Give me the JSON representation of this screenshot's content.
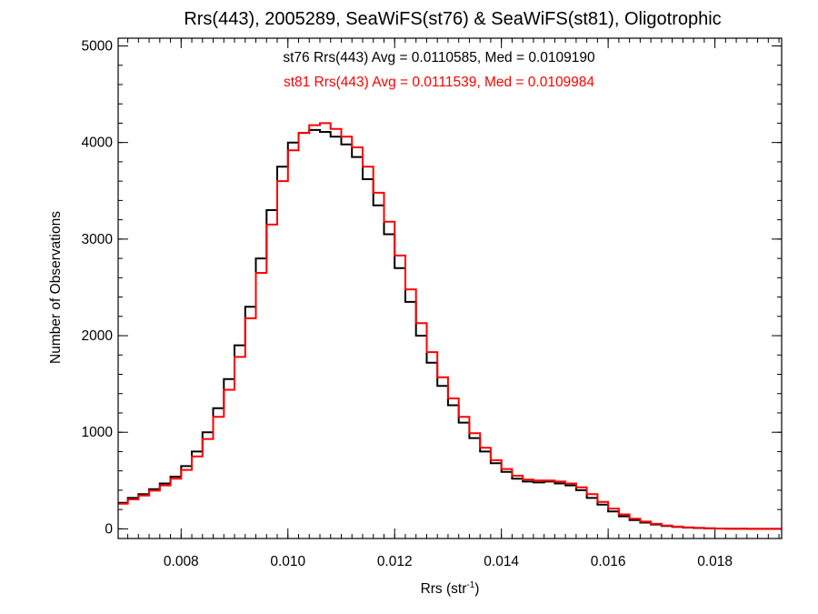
{
  "chart_data": {
    "type": "line",
    "title": "Rrs(443), 2005289, SeaWiFS(st76) & SeaWiFS(st81), Oligotrophic",
    "xlabel": {
      "base": "Rrs (str",
      "sup": "-1",
      "close": ")"
    },
    "ylabel": "Number of Observations",
    "xlim": [
      0.00682,
      0.01925
    ],
    "ylim": [
      -100,
      5080
    ],
    "x_ticks": [
      {
        "value": 0.008,
        "label": "0.008"
      },
      {
        "value": 0.01,
        "label": "0.010"
      },
      {
        "value": 0.012,
        "label": "0.012"
      },
      {
        "value": 0.014,
        "label": "0.014"
      },
      {
        "value": 0.016,
        "label": "0.016"
      },
      {
        "value": 0.018,
        "label": "0.018"
      }
    ],
    "y_ticks": [
      {
        "value": 0,
        "label": "0"
      },
      {
        "value": 1000,
        "label": "1000"
      },
      {
        "value": 2000,
        "label": "2000"
      },
      {
        "value": 3000,
        "label": "3000"
      },
      {
        "value": 4000,
        "label": "4000"
      },
      {
        "value": 5000,
        "label": "5000"
      }
    ],
    "grid": false,
    "step_style": "histogram",
    "annotations": [
      {
        "text": "st76 Rrs(443) Avg = 0.0110585, Med = 0.0109190",
        "color": "#000000"
      },
      {
        "text": "st81 Rrs(443) Avg = 0.0111539, Med = 0.0109984",
        "color": "#ff0000"
      }
    ],
    "series": [
      {
        "color": "#000000",
        "x": [
          0.0068,
          0.007,
          0.0072,
          0.0074,
          0.0076,
          0.0078,
          0.008,
          0.0082,
          0.0084,
          0.0086,
          0.0088,
          0.009,
          0.0092,
          0.0094,
          0.0096,
          0.0098,
          0.01,
          0.0102,
          0.0104,
          0.0106,
          0.0108,
          0.011,
          0.0112,
          0.0114,
          0.0116,
          0.0118,
          0.012,
          0.0122,
          0.0124,
          0.0126,
          0.0128,
          0.013,
          0.0132,
          0.0134,
          0.0136,
          0.0138,
          0.014,
          0.0142,
          0.0144,
          0.0146,
          0.0148,
          0.015,
          0.0152,
          0.0154,
          0.0156,
          0.0158,
          0.016,
          0.0162,
          0.0164,
          0.0166,
          0.0168,
          0.017,
          0.0172,
          0.0174,
          0.0176,
          0.0178,
          0.018,
          0.0182,
          0.0184,
          0.0186,
          0.0188,
          0.019,
          0.0192
        ],
        "y": [
          270,
          320,
          360,
          410,
          470,
          540,
          650,
          800,
          1000,
          1250,
          1550,
          1900,
          2300,
          2800,
          3300,
          3750,
          4000,
          4100,
          4130,
          4110,
          4060,
          3980,
          3850,
          3620,
          3350,
          3050,
          2700,
          2350,
          2000,
          1720,
          1480,
          1280,
          1100,
          940,
          800,
          680,
          590,
          520,
          490,
          480,
          490,
          470,
          450,
          400,
          320,
          250,
          180,
          130,
          90,
          65,
          45,
          30,
          20,
          13,
          8,
          5,
          3,
          2,
          1,
          0,
          0,
          0,
          0
        ]
      },
      {
        "color": "#ff0000",
        "x": [
          0.0068,
          0.007,
          0.0072,
          0.0074,
          0.0076,
          0.0078,
          0.008,
          0.0082,
          0.0084,
          0.0086,
          0.0088,
          0.009,
          0.0092,
          0.0094,
          0.0096,
          0.0098,
          0.01,
          0.0102,
          0.0104,
          0.0106,
          0.0108,
          0.011,
          0.0112,
          0.0114,
          0.0116,
          0.0118,
          0.012,
          0.0122,
          0.0124,
          0.0126,
          0.0128,
          0.013,
          0.0132,
          0.0134,
          0.0136,
          0.0138,
          0.014,
          0.0142,
          0.0144,
          0.0146,
          0.0148,
          0.015,
          0.0152,
          0.0154,
          0.0156,
          0.0158,
          0.016,
          0.0162,
          0.0164,
          0.0166,
          0.0168,
          0.017,
          0.0172,
          0.0174,
          0.0176,
          0.0178,
          0.018,
          0.0182,
          0.0184,
          0.0186,
          0.0188,
          0.019,
          0.0192
        ],
        "y": [
          260,
          305,
          345,
          395,
          450,
          520,
          610,
          750,
          930,
          1160,
          1440,
          1780,
          2180,
          2650,
          3150,
          3600,
          3920,
          4100,
          4180,
          4200,
          4140,
          4060,
          3950,
          3750,
          3480,
          3180,
          2830,
          2480,
          2130,
          1830,
          1570,
          1350,
          1160,
          990,
          840,
          710,
          620,
          550,
          510,
          500,
          500,
          490,
          470,
          430,
          360,
          280,
          210,
          150,
          105,
          75,
          52,
          35,
          23,
          15,
          10,
          6,
          4,
          2,
          1,
          0,
          0,
          0,
          0
        ]
      }
    ]
  }
}
